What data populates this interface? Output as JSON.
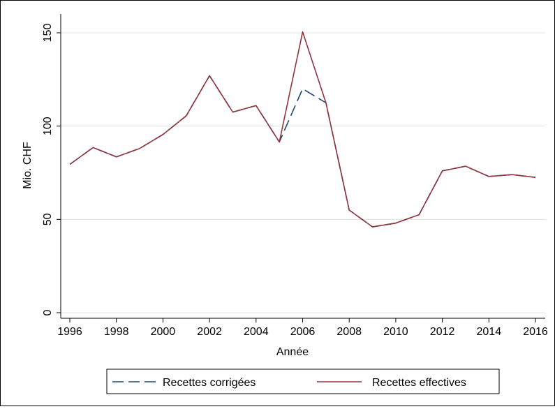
{
  "chart_data": {
    "type": "line",
    "title": "",
    "xlabel": "Année",
    "ylabel": "Mio. CHF",
    "xlim": [
      1996,
      2016
    ],
    "ylim": [
      0,
      150
    ],
    "xticks": [
      1996,
      1998,
      2000,
      2002,
      2004,
      2006,
      2008,
      2010,
      2012,
      2014,
      2016
    ],
    "yticks": [
      0,
      50,
      100,
      150
    ],
    "grid": "horizontal",
    "legend_position": "bottom",
    "x": [
      1996,
      1997,
      1998,
      1999,
      2000,
      2001,
      2002,
      2003,
      2004,
      2005,
      2006,
      2007,
      2008,
      2009,
      2010,
      2011,
      2012,
      2013,
      2014,
      2015,
      2016
    ],
    "series": [
      {
        "name": "Recettes corrigées",
        "color": "#1a476f",
        "style": "dashed",
        "values": [
          79.5,
          88.5,
          83.5,
          88,
          95.5,
          105.5,
          127,
          107.5,
          111,
          91.5,
          120,
          112.5,
          55,
          46,
          48,
          52.5,
          76,
          78.5,
          73,
          74,
          72.5
        ]
      },
      {
        "name": "Recettes effectives",
        "color": "#90353b",
        "style": "solid",
        "values": [
          79.5,
          88.5,
          83.5,
          88,
          95.5,
          105.5,
          127,
          107.5,
          111,
          91.5,
          150.5,
          112.5,
          55,
          46,
          48,
          52.5,
          76,
          78.5,
          73,
          74,
          72.5
        ]
      }
    ]
  }
}
